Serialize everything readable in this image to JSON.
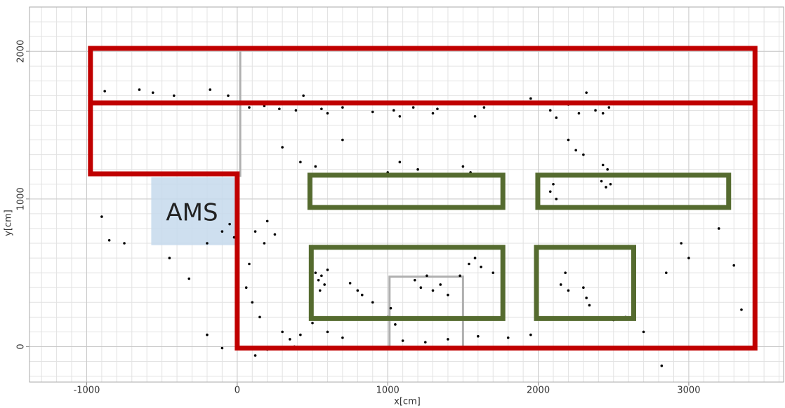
{
  "chart_data": {
    "type": "scatter",
    "xlabel": "x[cm]",
    "ylabel": "y[cm]",
    "xlim": [
      -1380,
      3630
    ],
    "ylim": [
      -240,
      2300
    ],
    "xticks": [
      -1000,
      0,
      1000,
      2000,
      3000
    ],
    "yticks": [
      0,
      1000,
      2000
    ],
    "grid": true,
    "minor_tick_step": 100,
    "color": "#000000",
    "x": [
      -880,
      -650,
      -560,
      -420,
      -300,
      -180,
      -60,
      80,
      180,
      280,
      390,
      440,
      560,
      600,
      700,
      900,
      1040,
      1080,
      1170,
      1300,
      1330,
      1580,
      1640,
      1950,
      2080,
      2120,
      2200,
      2270,
      2320,
      2380,
      2430,
      2470,
      300,
      420,
      520,
      700,
      1000,
      1080,
      1200,
      1500,
      1550,
      2250,
      2300,
      2200,
      2460,
      2430,
      2480,
      2450,
      2420,
      2100,
      2080,
      2120,
      2200,
      -900,
      -850,
      -750,
      -450,
      -320,
      -200,
      -100,
      -50,
      -20,
      80,
      120,
      180,
      250,
      200,
      520,
      540,
      560,
      580,
      550,
      600,
      750,
      800,
      830,
      900,
      1000,
      1050,
      1020,
      1180,
      1220,
      1260,
      1300,
      1350,
      1400,
      1480,
      1540,
      1580,
      1620,
      1700,
      2150,
      2180,
      2200,
      2320,
      2340,
      2300,
      2580,
      2700,
      2850,
      2950,
      3000,
      3200,
      3300,
      3350,
      2820,
      120,
      200,
      300,
      350,
      380,
      420,
      500,
      600,
      700,
      1100,
      1250,
      1400,
      1600,
      1800,
      1950,
      2500,
      -200,
      -100,
      100,
      60,
      150
    ],
    "y": [
      1730,
      1740,
      1720,
      1700,
      1650,
      1740,
      1700,
      1620,
      1630,
      1610,
      1600,
      1700,
      1610,
      1580,
      1620,
      1590,
      1600,
      1560,
      1620,
      1580,
      1610,
      1560,
      1620,
      1680,
      1600,
      1550,
      1640,
      1580,
      1720,
      1600,
      1580,
      1620,
      1350,
      1250,
      1220,
      1400,
      1180,
      1250,
      1200,
      1220,
      1180,
      1330,
      1300,
      1400,
      1200,
      1230,
      1100,
      1080,
      1120,
      1100,
      1050,
      1000,
      950,
      880,
      720,
      700,
      600,
      460,
      700,
      780,
      830,
      740,
      560,
      780,
      700,
      760,
      850,
      500,
      450,
      480,
      420,
      380,
      520,
      430,
      380,
      350,
      300,
      200,
      150,
      260,
      450,
      400,
      480,
      380,
      420,
      350,
      480,
      560,
      600,
      540,
      500,
      420,
      500,
      380,
      330,
      280,
      400,
      200,
      100,
      500,
      700,
      600,
      800,
      550,
      250,
      -130,
      -60,
      -20,
      100,
      50,
      0,
      80,
      160,
      100,
      60,
      40,
      30,
      50,
      70,
      60,
      80,
      180,
      80,
      -10,
      300,
      400,
      200
    ],
    "shapes": [
      {
        "kind": "polygon",
        "color": "#c00000",
        "xs": [
          -975,
          3440,
          3440,
          0,
          0,
          -975
        ],
        "ys": [
          2020,
          2020,
          -10,
          -10,
          1170,
          1170
        ]
      },
      {
        "kind": "line",
        "color": "#c00000",
        "xs": [
          -975,
          3440
        ],
        "ys": [
          1650,
          1650
        ]
      },
      {
        "kind": "polygon",
        "color": "#556b2f",
        "xs": [
          483,
          1765,
          1765,
          483
        ],
        "ys": [
          1161,
          1161,
          943,
          943
        ]
      },
      {
        "kind": "polygon",
        "color": "#556b2f",
        "xs": [
          1997,
          3265,
          3265,
          1997
        ],
        "ys": [
          1161,
          1161,
          943,
          943
        ]
      },
      {
        "kind": "polygon",
        "color": "#556b2f",
        "xs": [
          492,
          1765,
          1765,
          492
        ],
        "ys": [
          673,
          673,
          190,
          190
        ]
      },
      {
        "kind": "polygon",
        "color": "#556b2f",
        "xs": [
          1988,
          2634,
          2634,
          1988
        ],
        "ys": [
          673,
          673,
          190,
          190
        ]
      },
      {
        "kind": "line",
        "color": "#b0b0b0",
        "xs": [
          20,
          20
        ],
        "ys": [
          2000,
          1150
        ]
      },
      {
        "kind": "line",
        "color": "#b0b0b0",
        "xs": [
          1012,
          1012,
          1500,
          1500
        ],
        "ys": [
          -20,
          474,
          474,
          -20
        ]
      }
    ],
    "region": {
      "label": "AMS",
      "color": "#c5d9ec",
      "xs": [
        -571,
        -9
      ],
      "ys": [
        687,
        1147
      ],
      "label_x": -300,
      "label_y": 900
    }
  }
}
